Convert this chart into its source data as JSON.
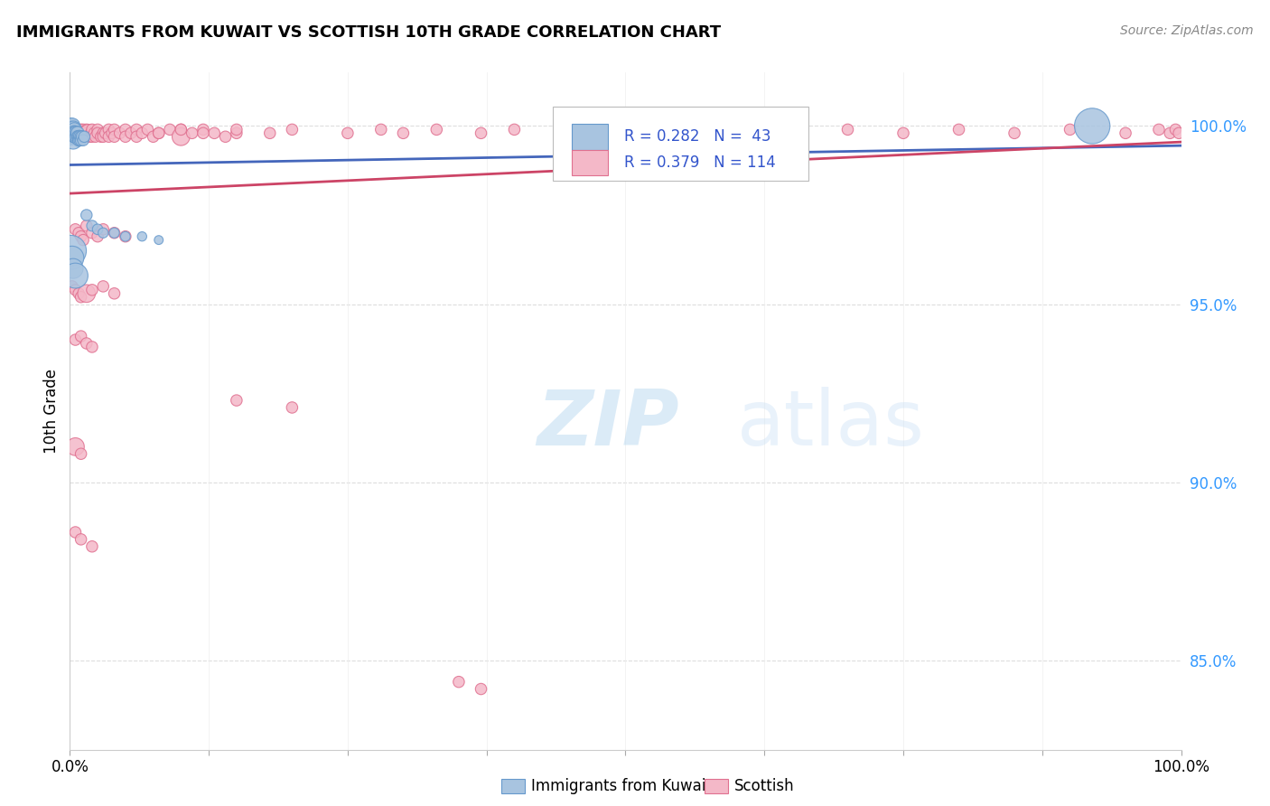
{
  "title": "IMMIGRANTS FROM KUWAIT VS SCOTTISH 10TH GRADE CORRELATION CHART",
  "source": "Source: ZipAtlas.com",
  "ylabel": "10th Grade",
  "y_tick_labels": [
    "85.0%",
    "90.0%",
    "95.0%",
    "100.0%"
  ],
  "y_tick_values": [
    0.85,
    0.9,
    0.95,
    1.0
  ],
  "xlim": [
    0.0,
    1.0
  ],
  "ylim": [
    0.825,
    1.015
  ],
  "legend_blue_r": "0.282",
  "legend_blue_n": "43",
  "legend_pink_r": "0.379",
  "legend_pink_n": "114",
  "blue_fill": "#a8c4e0",
  "blue_edge": "#6699cc",
  "pink_fill": "#f4b8c8",
  "pink_edge": "#e07090",
  "trendline_blue": "#4466bb",
  "trendline_pink": "#cc4466",
  "legend_text_color": "#3355cc",
  "ytick_color": "#3399ff",
  "source_color": "#888888",
  "watermark_color": "#d8ecf8",
  "grid_color": "#dddddd",
  "bottom_label_blue": "Immigrants from Kuwait",
  "bottom_label_pink": "Scottish"
}
